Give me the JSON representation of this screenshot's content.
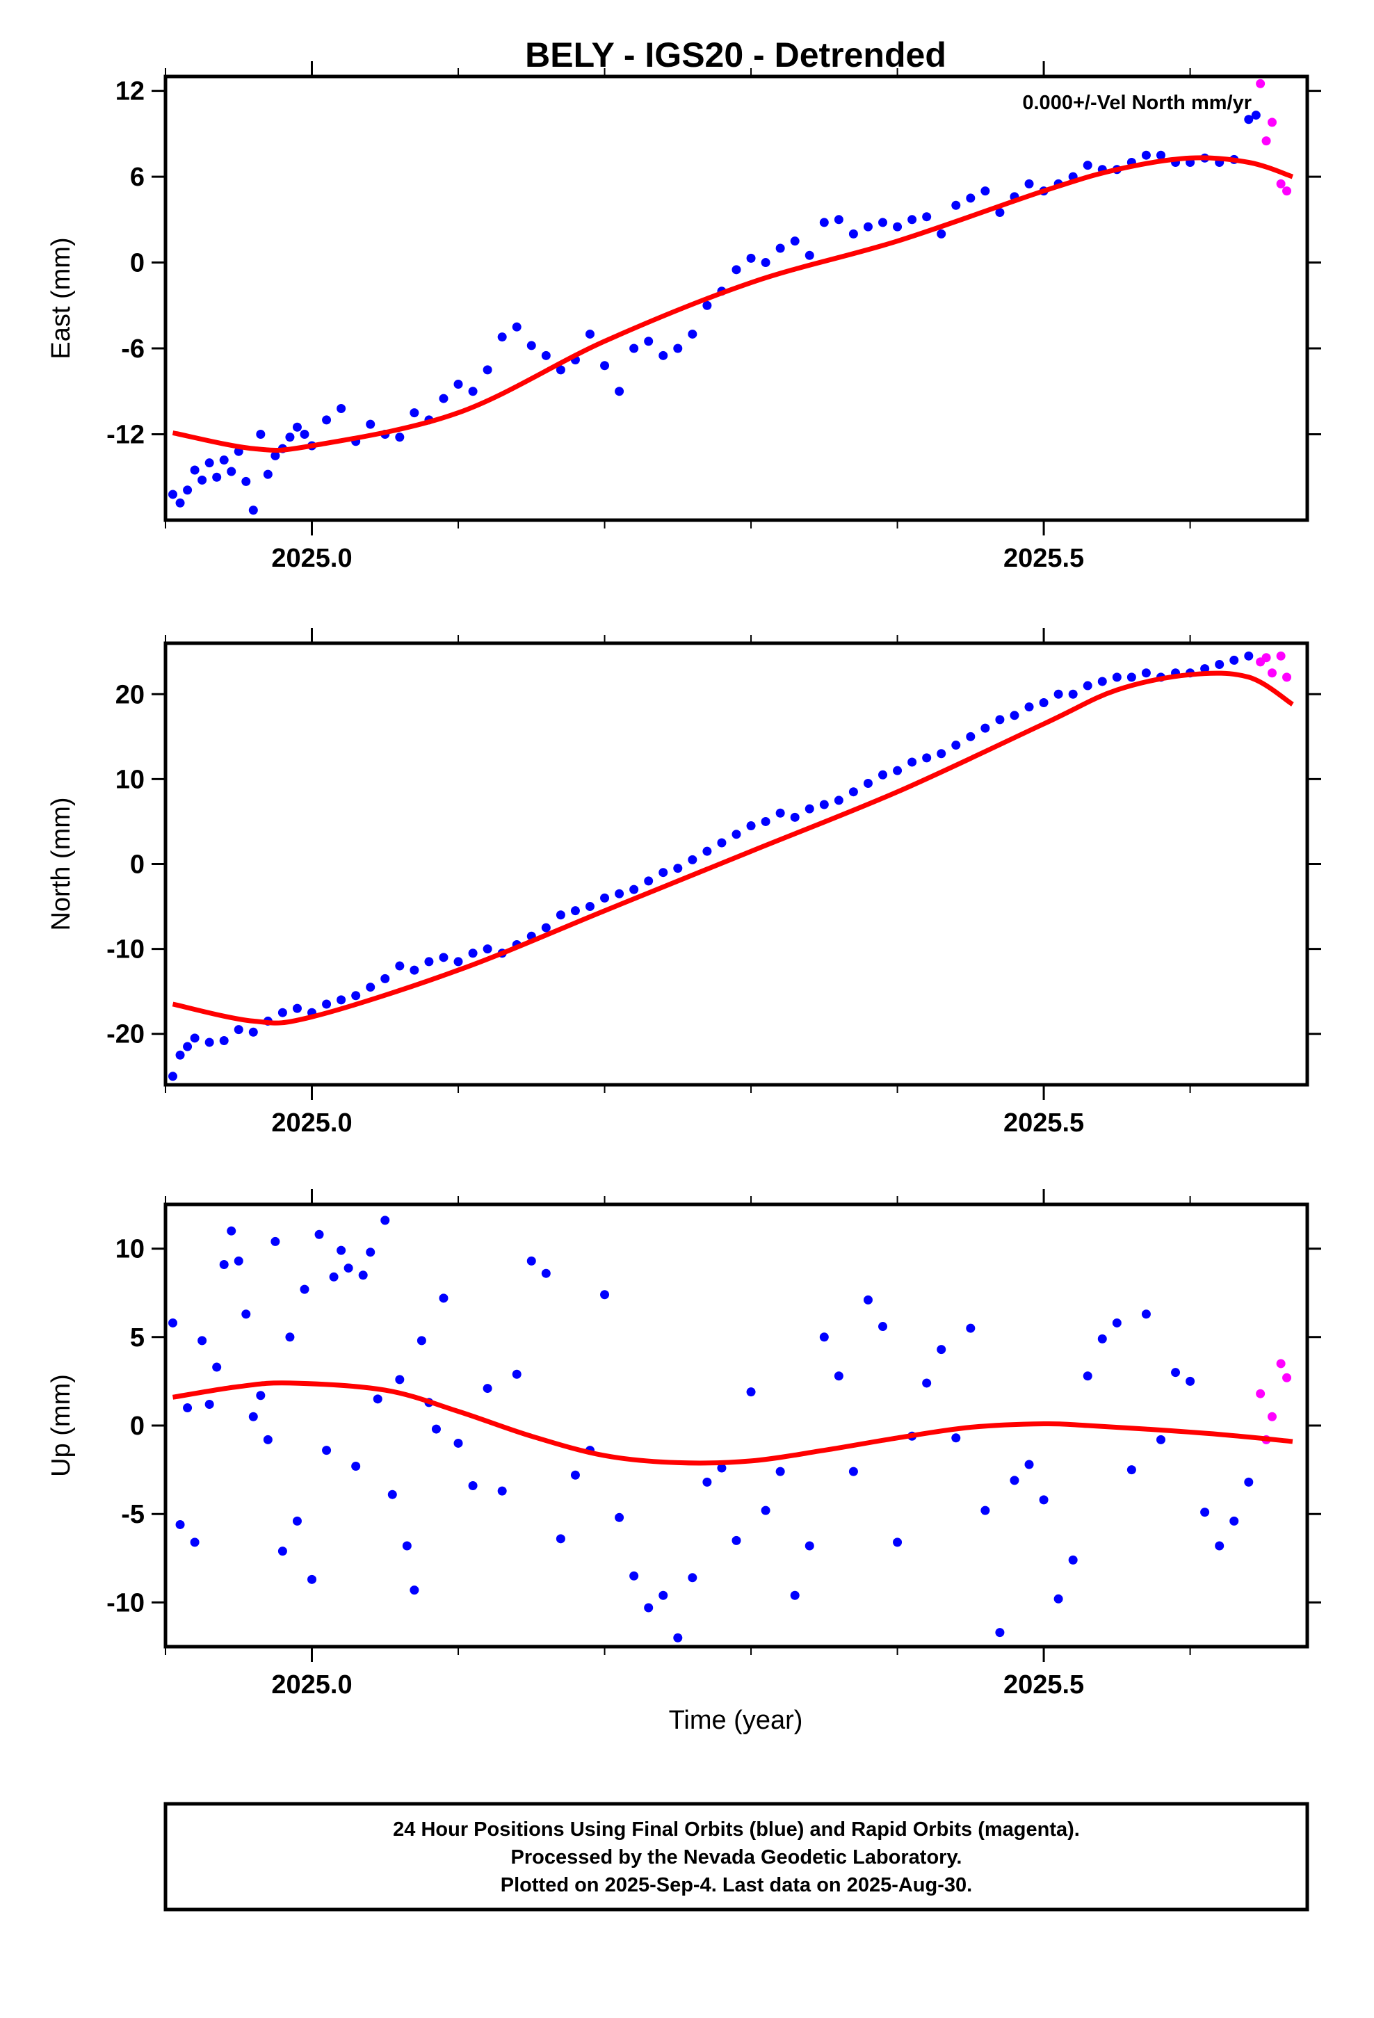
{
  "figure": {
    "title": "BELY - IGS20 - Detrended",
    "annotation": "0.000+/-Vel North mm/yr",
    "xlabel": "Time (year)",
    "footer_lines": [
      "24 Hour Positions Using Final Orbits (blue) and Rapid Orbits (magenta).",
      "Processed by the Nevada Geodetic Laboratory.",
      "Plotted on 2025-Sep-4. Last data on 2025-Aug-30."
    ]
  },
  "colors": {
    "final": "#0000ff",
    "rapid": "#ff00ff",
    "fit": "#ff0000",
    "frame": "#000000"
  },
  "chart_data": [
    {
      "type": "scatter",
      "ylabel": "East (mm)",
      "xlim": [
        2024.9,
        2025.68
      ],
      "ylim": [
        -18,
        13
      ],
      "xticks": [
        2025.0,
        2025.5
      ],
      "xtick_labels": [
        "2025.0",
        "2025.5"
      ],
      "yticks": [
        -12,
        -6,
        0,
        6,
        12
      ],
      "ytick_labels": [
        "-12",
        "-6",
        "0",
        "6",
        "12"
      ],
      "fit": {
        "x": [
          2024.905,
          2024.96,
          2025.0,
          2025.1,
          2025.2,
          2025.3,
          2025.4,
          2025.5,
          2025.55,
          2025.6,
          2025.64,
          2025.67
        ],
        "y": [
          -11.9,
          -13.0,
          -12.8,
          -10.5,
          -5.5,
          -1.4,
          1.5,
          5.0,
          6.5,
          7.3,
          7.0,
          6.0
        ]
      },
      "series": [
        {
          "name": "Final Orbits",
          "color_key": "final",
          "x": [
            2024.905,
            2024.91,
            2024.915,
            2024.92,
            2024.925,
            2024.93,
            2024.935,
            2024.94,
            2024.945,
            2024.95,
            2024.955,
            2024.96,
            2024.965,
            2024.97,
            2024.975,
            2024.98,
            2024.985,
            2024.99,
            2024.995,
            2025.0,
            2025.01,
            2025.02,
            2025.03,
            2025.04,
            2025.05,
            2025.06,
            2025.07,
            2025.08,
            2025.09,
            2025.1,
            2025.11,
            2025.12,
            2025.13,
            2025.14,
            2025.15,
            2025.16,
            2025.17,
            2025.18,
            2025.19,
            2025.2,
            2025.21,
            2025.22,
            2025.23,
            2025.24,
            2025.25,
            2025.26,
            2025.27,
            2025.28,
            2025.29,
            2025.3,
            2025.31,
            2025.32,
            2025.33,
            2025.34,
            2025.35,
            2025.36,
            2025.37,
            2025.38,
            2025.39,
            2025.4,
            2025.41,
            2025.42,
            2025.43,
            2025.44,
            2025.45,
            2025.46,
            2025.47,
            2025.48,
            2025.49,
            2025.5,
            2025.51,
            2025.52,
            2025.53,
            2025.54,
            2025.55,
            2025.56,
            2025.57,
            2025.58,
            2025.59,
            2025.6,
            2025.61,
            2025.62,
            2025.63,
            2025.64,
            2025.645
          ],
          "y": [
            -16.2,
            -16.8,
            -15.9,
            -14.5,
            -15.2,
            -14.0,
            -15.0,
            -13.8,
            -14.6,
            -13.2,
            -15.3,
            -17.3,
            -12.0,
            -14.8,
            -13.5,
            -13.0,
            -12.2,
            -11.5,
            -12.0,
            -12.8,
            -11.0,
            -10.2,
            -12.5,
            -11.3,
            -12.0,
            -12.2,
            -10.5,
            -11.0,
            -9.5,
            -8.5,
            -9.0,
            -7.5,
            -5.2,
            -4.5,
            -5.8,
            -6.5,
            -7.5,
            -6.8,
            -5.0,
            -7.2,
            -9.0,
            -6.0,
            -5.5,
            -6.5,
            -6.0,
            -5.0,
            -3.0,
            -2.0,
            -0.5,
            0.3,
            0.0,
            1.0,
            1.5,
            0.5,
            2.8,
            3.0,
            2.0,
            2.5,
            2.8,
            2.5,
            3.0,
            3.2,
            2.0,
            4.0,
            4.5,
            5.0,
            3.5,
            4.6,
            5.5,
            5.0,
            5.5,
            6.0,
            6.8,
            6.5,
            6.5,
            7.0,
            7.5,
            7.5,
            7.0,
            7.0,
            7.3,
            7.0,
            7.2,
            10.0,
            10.3
          ]
        },
        {
          "name": "Rapid Orbits",
          "color_key": "rapid",
          "x": [
            2025.648,
            2025.652,
            2025.656,
            2025.662,
            2025.666
          ],
          "y": [
            12.5,
            8.5,
            9.8,
            5.5,
            5.0
          ]
        }
      ]
    },
    {
      "type": "scatter",
      "ylabel": "North (mm)",
      "xlim": [
        2024.9,
        2025.68
      ],
      "ylim": [
        -26,
        26
      ],
      "xticks": [
        2025.0,
        2025.5
      ],
      "xtick_labels": [
        "2025.0",
        "2025.5"
      ],
      "yticks": [
        -20,
        -10,
        0,
        10,
        20
      ],
      "ytick_labels": [
        "-20",
        "-10",
        "0",
        "10",
        "20"
      ],
      "fit": {
        "x": [
          2024.905,
          2024.96,
          2025.0,
          2025.1,
          2025.2,
          2025.3,
          2025.4,
          2025.5,
          2025.55,
          2025.6,
          2025.64,
          2025.67
        ],
        "y": [
          -16.5,
          -18.5,
          -18.0,
          -12.5,
          -5.5,
          1.5,
          8.5,
          16.5,
          20.5,
          22.3,
          22.0,
          18.8
        ]
      },
      "series": [
        {
          "name": "Final Orbits",
          "color_key": "final",
          "x": [
            2024.905,
            2024.91,
            2024.915,
            2024.92,
            2024.93,
            2024.94,
            2024.95,
            2024.96,
            2024.97,
            2024.98,
            2024.99,
            2025.0,
            2025.01,
            2025.02,
            2025.03,
            2025.04,
            2025.05,
            2025.06,
            2025.07,
            2025.08,
            2025.09,
            2025.1,
            2025.11,
            2025.12,
            2025.13,
            2025.14,
            2025.15,
            2025.16,
            2025.17,
            2025.18,
            2025.19,
            2025.2,
            2025.21,
            2025.22,
            2025.23,
            2025.24,
            2025.25,
            2025.26,
            2025.27,
            2025.28,
            2025.29,
            2025.3,
            2025.31,
            2025.32,
            2025.33,
            2025.34,
            2025.35,
            2025.36,
            2025.37,
            2025.38,
            2025.39,
            2025.4,
            2025.41,
            2025.42,
            2025.43,
            2025.44,
            2025.45,
            2025.46,
            2025.47,
            2025.48,
            2025.49,
            2025.5,
            2025.51,
            2025.52,
            2025.53,
            2025.54,
            2025.55,
            2025.56,
            2025.57,
            2025.58,
            2025.59,
            2025.6,
            2025.61,
            2025.62,
            2025.63,
            2025.64
          ],
          "y": [
            -25.0,
            -22.5,
            -21.5,
            -20.5,
            -21.0,
            -20.8,
            -19.5,
            -19.8,
            -18.5,
            -17.5,
            -17.0,
            -17.5,
            -16.5,
            -16.0,
            -15.5,
            -14.5,
            -13.5,
            -12.0,
            -12.5,
            -11.5,
            -11.0,
            -11.5,
            -10.5,
            -10.0,
            -10.5,
            -9.5,
            -8.5,
            -7.5,
            -6.0,
            -5.5,
            -5.0,
            -4.0,
            -3.5,
            -3.0,
            -2.0,
            -1.0,
            -0.5,
            0.5,
            1.5,
            2.5,
            3.5,
            4.5,
            5.0,
            6.0,
            5.5,
            6.5,
            7.0,
            7.5,
            8.5,
            9.5,
            10.5,
            11.0,
            12.0,
            12.5,
            13.0,
            14.0,
            15.0,
            16.0,
            17.0,
            17.5,
            18.5,
            19.0,
            20.0,
            20.0,
            21.0,
            21.5,
            22.0,
            22.0,
            22.5,
            22.0,
            22.5,
            22.5,
            23.0,
            23.5,
            24.0,
            24.5
          ]
        },
        {
          "name": "Rapid Orbits",
          "color_key": "rapid",
          "x": [
            2025.648,
            2025.652,
            2025.656,
            2025.662,
            2025.666
          ],
          "y": [
            23.8,
            24.3,
            22.5,
            24.5,
            22.0
          ]
        }
      ]
    },
    {
      "type": "scatter",
      "ylabel": "Up (mm)",
      "xlim": [
        2024.9,
        2025.68
      ],
      "ylim": [
        -12.5,
        12.5
      ],
      "xticks": [
        2025.0,
        2025.5
      ],
      "xtick_labels": [
        "2025.0",
        "2025.5"
      ],
      "yticks": [
        -10,
        -5,
        0,
        5,
        10
      ],
      "ytick_labels": [
        "-10",
        "-5",
        "0",
        "5",
        "10"
      ],
      "fit": {
        "x": [
          2024.905,
          2024.95,
          2024.985,
          2025.05,
          2025.1,
          2025.15,
          2025.2,
          2025.25,
          2025.3,
          2025.35,
          2025.4,
          2025.45,
          2025.5,
          2025.53,
          2025.57,
          2025.62,
          2025.67
        ],
        "y": [
          1.6,
          2.2,
          2.4,
          2.0,
          0.8,
          -0.6,
          -1.7,
          -2.1,
          -2.0,
          -1.4,
          -0.7,
          -0.1,
          0.1,
          0.0,
          -0.2,
          -0.5,
          -0.9
        ]
      },
      "series": [
        {
          "name": "Final Orbits",
          "color_key": "final",
          "x": [
            2024.905,
            2024.91,
            2024.915,
            2024.92,
            2024.925,
            2024.93,
            2024.935,
            2024.94,
            2024.945,
            2024.95,
            2024.955,
            2024.96,
            2024.965,
            2024.97,
            2024.975,
            2024.98,
            2024.985,
            2024.99,
            2024.995,
            2025.0,
            2025.005,
            2025.01,
            2025.015,
            2025.02,
            2025.025,
            2025.03,
            2025.035,
            2025.04,
            2025.045,
            2025.05,
            2025.055,
            2025.06,
            2025.065,
            2025.07,
            2025.075,
            2025.08,
            2025.085,
            2025.09,
            2025.1,
            2025.11,
            2025.12,
            2025.13,
            2025.14,
            2025.15,
            2025.16,
            2025.17,
            2025.18,
            2025.19,
            2025.2,
            2025.21,
            2025.22,
            2025.23,
            2025.24,
            2025.25,
            2025.26,
            2025.27,
            2025.28,
            2025.29,
            2025.3,
            2025.31,
            2025.32,
            2025.33,
            2025.34,
            2025.35,
            2025.36,
            2025.37,
            2025.38,
            2025.39,
            2025.4,
            2025.41,
            2025.42,
            2025.43,
            2025.44,
            2025.45,
            2025.46,
            2025.47,
            2025.48,
            2025.49,
            2025.5,
            2025.51,
            2025.52,
            2025.53,
            2025.54,
            2025.55,
            2025.56,
            2025.57,
            2025.58,
            2025.59,
            2025.6,
            2025.61,
            2025.62,
            2025.63,
            2025.64
          ],
          "y": [
            5.8,
            -5.6,
            1.0,
            -6.6,
            4.8,
            1.2,
            3.3,
            9.1,
            11.0,
            9.3,
            6.3,
            0.5,
            1.7,
            -0.8,
            10.4,
            -7.1,
            5.0,
            -5.4,
            7.7,
            -8.7,
            10.8,
            -1.4,
            8.4,
            9.9,
            8.9,
            -2.3,
            8.5,
            9.8,
            1.5,
            11.6,
            -3.9,
            2.6,
            -6.8,
            -9.3,
            4.8,
            1.3,
            -0.2,
            7.2,
            -1.0,
            -3.4,
            2.1,
            -3.7,
            2.9,
            9.3,
            8.6,
            -6.4,
            -2.8,
            -1.4,
            7.4,
            -5.2,
            -8.5,
            -10.3,
            -9.6,
            -12.0,
            -8.6,
            -3.2,
            -2.4,
            -6.5,
            1.9,
            -4.8,
            -2.6,
            -9.6,
            -6.8,
            5.0,
            2.8,
            -2.6,
            7.1,
            5.6,
            -6.6,
            -0.6,
            2.4,
            4.3,
            -0.7,
            5.5,
            -4.8,
            -11.7,
            -3.1,
            -2.2,
            -4.2,
            -9.8,
            -7.6,
            2.8,
            4.9,
            5.8,
            -2.5,
            6.3,
            -0.8,
            3.0,
            2.5,
            -4.9,
            -6.8,
            -5.4,
            -3.2
          ]
        },
        {
          "name": "Rapid Orbits",
          "color_key": "rapid",
          "x": [
            2025.648,
            2025.652,
            2025.656,
            2025.662,
            2025.666
          ],
          "y": [
            1.8,
            -0.8,
            0.5,
            3.5,
            2.7
          ]
        }
      ]
    }
  ]
}
